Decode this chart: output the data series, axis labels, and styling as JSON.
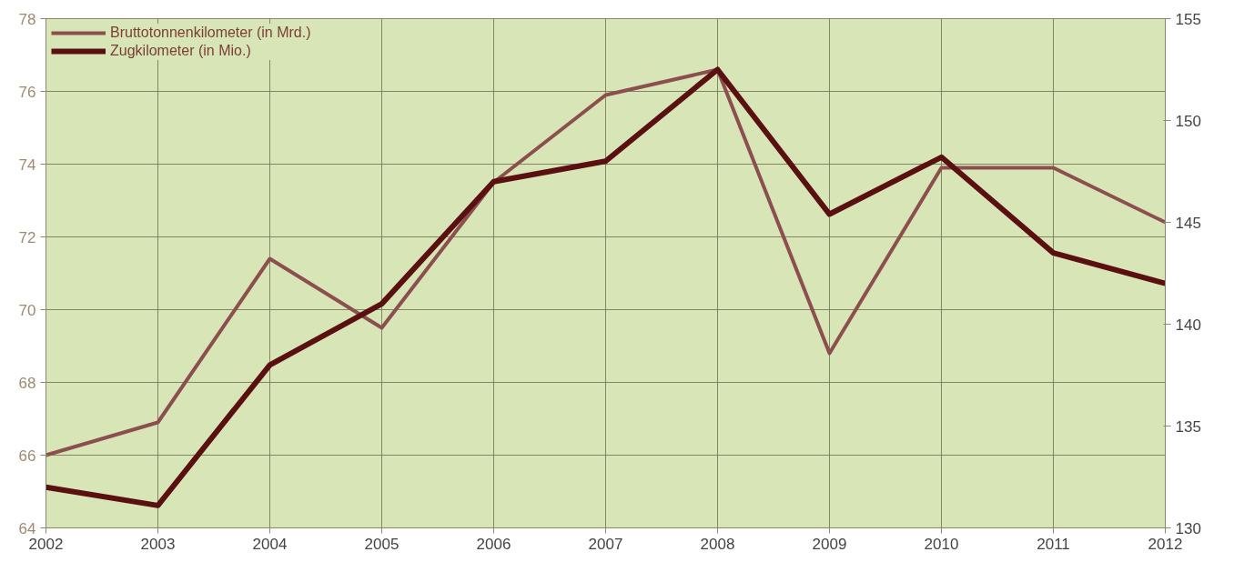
{
  "chart_data": {
    "type": "line",
    "x": [
      2002,
      2003,
      2004,
      2005,
      2006,
      2007,
      2008,
      2009,
      2010,
      2011,
      2012
    ],
    "series": [
      {
        "name": "Bruttotonnenkilometer (in Mrd.)",
        "color": "#8c4f4f",
        "values": [
          66.0,
          66.9,
          71.4,
          69.5,
          73.5,
          75.9,
          76.6,
          68.8,
          73.9,
          73.9,
          72.4
        ]
      },
      {
        "name": "Zugkilometer (in Mio.)",
        "color": "#5a1010",
        "axis": "y2",
        "values": [
          132.0,
          131.1,
          138.0,
          141.0,
          147.0,
          148.0,
          152.5,
          145.4,
          148.2,
          143.5,
          142.0
        ]
      }
    ],
    "xlim": [
      2002,
      2012
    ],
    "xticks": [
      2002,
      2003,
      2004,
      2005,
      2006,
      2007,
      2008,
      2009,
      2010,
      2011,
      2012
    ],
    "ylim": [
      64,
      78
    ],
    "yticks": [
      64,
      66,
      68,
      70,
      72,
      74,
      76,
      78
    ],
    "y2lim": [
      130,
      155
    ],
    "y2ticks": [
      130,
      135,
      140,
      145,
      150,
      155
    ],
    "grid": true,
    "legend": "top left",
    "marker": "none",
    "line_style": "solid"
  }
}
